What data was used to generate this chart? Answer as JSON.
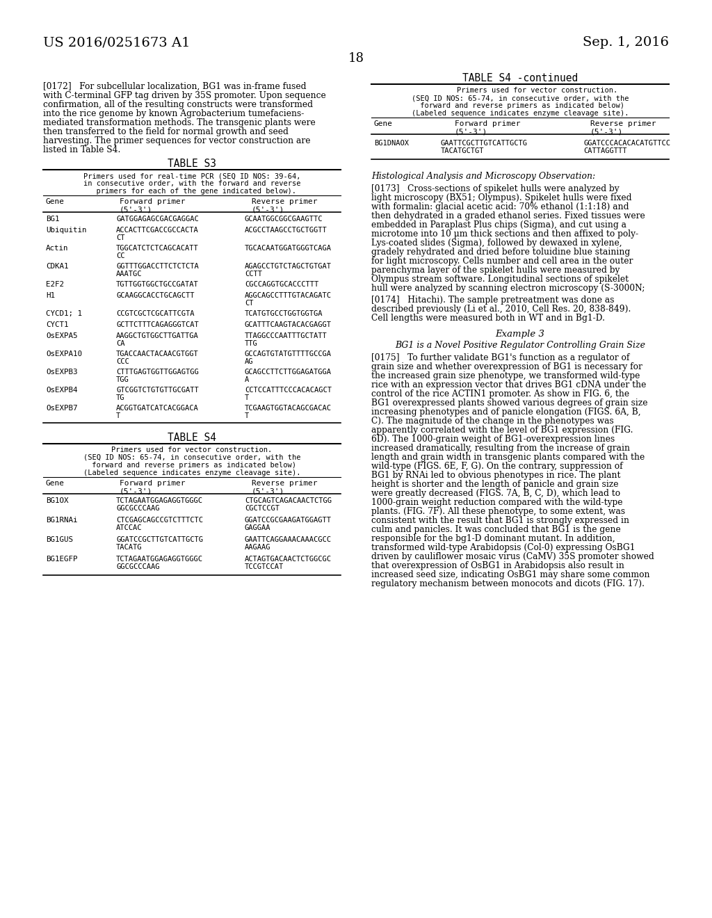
{
  "background_color": "#ffffff",
  "header_left": "US 2016/0251673 A1",
  "header_right": "Sep. 1, 2016",
  "page_number": "18",
  "left_column": {
    "paragraph_0172": "[0172]   For subcellular localization, BG1 was in-frame fused with C-terminal GFP tag driven by 35S promoter. Upon sequence confirmation, all of the resulting constructs were transformed into the rice genome by known Agrobacterium tumefaciens-mediated transformation methods. The transgenic plants were then transferred to the field for normal growth and seed harvesting. The primer sequences for vector construction are listed in Table S4.",
    "table_s3_title": "TABLE S3",
    "table_s3_header_desc": "Primers used for real-time PCR (SEQ ID NOS: 39-64,\nin consecutive order, with the forward and reverse\n  primers for each of the gene indicated below).",
    "table_s3_col1": "Gene",
    "table_s3_col2": "Forward primer\n(5'-3')",
    "table_s3_col3": "Reverse primer\n(5'-3')",
    "table_s3_rows": [
      [
        "BG1",
        "GATGGAGAGCGACGAGGAC",
        "GCAATGGCGGCGAAGTTC"
      ],
      [
        "Ubiquitin",
        "ACCACTTCGACCGCCACTA\nCT",
        "ACGCCTAAGCCTGCTGGTT"
      ],
      [
        "Actin",
        "TGGCATCTCTCAGCACATT\nCC",
        "TGCACAATGGATGGGTCAGA"
      ],
      [
        "CDKA1",
        "GGTTTGGACCTTCTCTCTA\nAAATGC",
        "AGAGCCTGTCTAGCTGTGAT\nCCTT"
      ],
      [
        "E2F2",
        "TGTTGGTGGCTGCCGATAT",
        "CGCCAGGTGCACCCTTT"
      ],
      [
        "H1",
        "GCAAGGCACCTGCAGCTT",
        "AGGCAGCCTTTGTACAGATC\nCT"
      ],
      [
        "CYCD1; 1",
        "CCGTCGCTCGCATTCGTA",
        "TCATGTGCCTGGTGGTGA"
      ],
      [
        "CYCT1",
        "GCTTCTTTCAGAGGGTCAT",
        "GCATTTCAAGTACACGAGGT"
      ],
      [
        "OsEXPA5",
        "AAGGCTGTGGCTTGATTGA\nCA",
        "TTAGGCCCAATTTGCTATT\nTTG"
      ],
      [
        "OsEXPA10",
        "TGACCAACTACAACGTGGT\nCCC",
        "GCCAGTGTATGTTTTGCCGA\nAG"
      ],
      [
        "OsEXPB3",
        "CTTTGAGTGGTTGGAGTGG\nTGG",
        "GCAGCCTTCTTGGAGATGGA\nA"
      ],
      [
        "OsEXPB4",
        "GTCGGTCTGTGTTGCGATT\nTG",
        "CCTCCATTTCCCACACAGCT\nT"
      ],
      [
        "OsEXPB7",
        "ACGGTGATCATCACGGACA\nT",
        "TCGAAGTGGTACAGCGACAC\nT"
      ]
    ],
    "table_s4_title": "TABLE S4",
    "table_s4_header_desc": "Primers used for vector construction.\n(SEQ ID NOS: 65-74, in consecutive order, with the\n forward and reverse primers as indicated below)\n(Labeled sequence indicates enzyme cleavage site).",
    "table_s4_col1": "Gene",
    "table_s4_col2": "Forward primer\n(5'-3')",
    "table_s4_col3": "Reverse primer\n(5'-3')",
    "table_s4_rows": [
      [
        "BG1OX",
        "TCTAGAATGGAGAGGTGGGC\nGGCGCCCAAG",
        "CTGCAGTCAGACAACTCTGG\nCGCTCCGT"
      ],
      [
        "BG1RNAi",
        "CTCGAGCAGCCGTCTTTCTC\nATCCAC",
        "GGATCCGCGAAGATGGAGTT\nGAGGAA"
      ],
      [
        "BG1GUS",
        "GGATCCGCTTGTCATTGCTG\nTACATG",
        "GAATTCAGGAAACAAACGCC\nAAGAAG"
      ],
      [
        "BG1EGFP",
        "TCTAGAATGGAGAGGTGGGC\nGGCGCCCAAG",
        "ACTAGTGACAACTCTGGCGC\nTCCGTCCAT"
      ]
    ]
  },
  "right_column": {
    "table_s4_continued_title": "TABLE S4 -continued",
    "table_s4_cont_header_desc": "        Primers used for vector construction.\n(SEQ ID NOS: 65-74, in consecutive order, with the\n forward and reverse primers as indicated below)\n(Labeled sequence indicates enzyme cleavage site).",
    "table_s4_cont_col1": "Gene",
    "table_s4_cont_col2": "Forward primer\n(5'-3')",
    "table_s4_cont_col3": "Reverse primer\n(5'-3')",
    "table_s4_cont_rows": [
      [
        "BG1DNAOX",
        "GAATTCGCTTGTCATTGCTG\nTACATGCTGT",
        "GGATCCCACACACATGTTCC\nCATTAGGTTT"
      ]
    ],
    "section_histological": "Histological Analysis and Microscopy Observation:",
    "paragraph_0173": "[0173]   Cross-sections of spikelet hulls were analyzed by light microscopy (BX51; Olympus). Spikelet hulls were fixed with formalin: glacial acetic acid: 70% ethanol (1:1:18) and then dehydrated in a graded ethanol series. Fixed tissues were embedded in Paraplast Plus chips (Sigma), and cut using a microtome into 10 μm thick sections and then affixed to poly-Lys-coated slides (Sigma), followed by dewaxed in xylene, gradely rehydrated and dried before toluidine blue staining for light microscopy. Cells number and cell area in the outer parenchyma layer of the spikelet hulls were measured by Olympus stream software. Longitudinal sections of spikelet hull were analyzed by scanning electron microscopy (S-3000N;",
    "paragraph_0174": "[0174]   Hitachi). The sample pretreatment was done as described previously (Li et al., 2010, Cell Res. 20, 838-849). Cell lengths were measured both in WT and in Bg1-D.",
    "example3_title": "Example 3",
    "example3_subtitle": "BG1 is a Novel Positive Regulator Controlling Grain Size",
    "paragraph_0175": "[0175]   To further validate BG1's function as a regulator of grain size and whether overexpression of BG1 is necessary for the increased grain size phenotype, we transformed wild-type rice with an expression vector that drives BG1 cDNA under the control of the rice ACTIN1 promoter. As show in FIG. 6, the BG1 overexpressed plants showed various degrees of grain size increasing phenotypes and of panicle elongation (FIGS. 6A, B, C). The magnitude of the change in the phenotypes was apparently correlated with the level of BG1 expression (FIG. 6D). The 1000-grain weight of BG1-overexpression lines increased dramatically, resulting from the increase of grain length and grain width in transgenic plants compared with the wild-type (FIGS. 6E, F, G). On the contrary, suppression of BG1 by RNAi led to obvious phenotypes in rice. The plant height is shorter and the length of panicle and grain size were greatly decreased (FIGS. 7A, B, C, D), which lead to 1000-grain weight reduction compared with the wild-type plants. (FIG. 7F). All these phenotype, to some extent, was consistent with the result that BG1 is strongly expressed in culm and panicles. It was concluded that BG1 is the gene responsible for the bg1-D dominant mutant. In addition, transformed wild-type Arabidopsis (Col-0) expressing OsBG1 driven by cauliflower mosaic virus (CaMV) 35S promoter showed that overexpression of OsBG1 in Arabidopsis also result in increased seed size, indicating OsBG1 may share some common regulatory mechanism between monocots and dicots (FIG. 17)."
  }
}
